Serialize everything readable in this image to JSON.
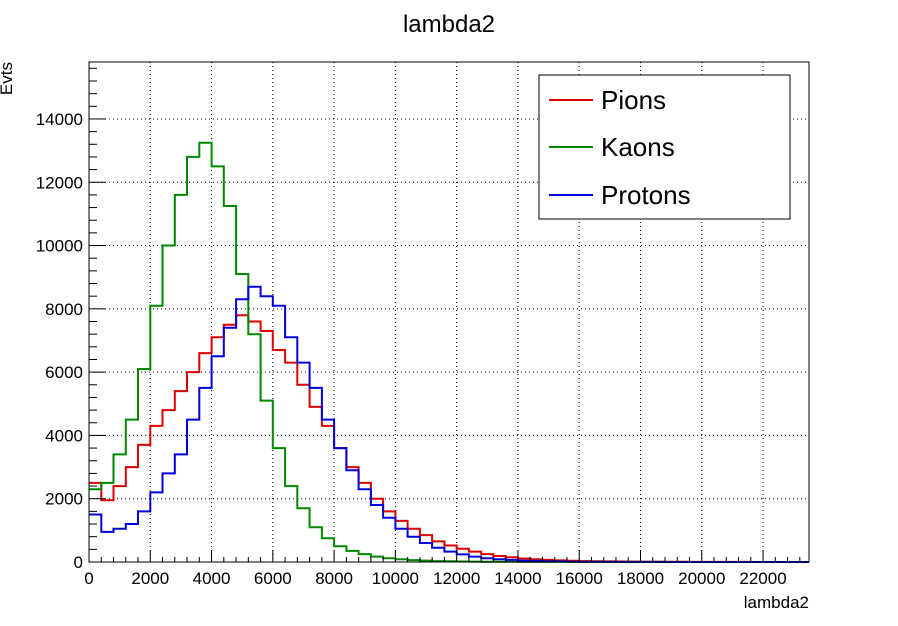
{
  "chart_data": {
    "type": "line",
    "title": "lambda2",
    "xlabel": "lambda2",
    "ylabel": "Evts",
    "xlim": [
      0,
      23500
    ],
    "ylim": [
      0,
      15800
    ],
    "bin_width": 400,
    "grid": true,
    "legend_position": "top-right",
    "x_ticks": [
      0,
      2000,
      4000,
      6000,
      8000,
      10000,
      12000,
      14000,
      16000,
      18000,
      20000,
      22000
    ],
    "y_ticks": [
      0,
      2000,
      4000,
      6000,
      8000,
      10000,
      12000,
      14000
    ],
    "series": [
      {
        "name": "Pions",
        "color": "#dd0000",
        "values": [
          2500,
          1950,
          2400,
          3000,
          3700,
          4300,
          4800,
          5400,
          6000,
          6600,
          7100,
          7500,
          7800,
          7600,
          7300,
          6700,
          6300,
          5600,
          4900,
          4300,
          3600,
          3000,
          2500,
          2000,
          1600,
          1300,
          1050,
          850,
          650,
          520,
          420,
          330,
          250,
          190,
          150,
          110,
          85,
          65,
          50,
          40,
          30,
          25,
          20,
          16,
          12,
          10,
          8,
          6,
          5,
          4,
          3,
          3,
          2,
          2,
          1,
          1,
          1,
          1,
          1
        ]
      },
      {
        "name": "Kaons",
        "color": "#008800",
        "values": [
          2300,
          2500,
          3400,
          4500,
          6100,
          8100,
          10000,
          11600,
          12800,
          13250,
          12500,
          11250,
          9100,
          7200,
          5100,
          3600,
          2400,
          1700,
          1100,
          750,
          500,
          350,
          250,
          170,
          120,
          85,
          60,
          45,
          30,
          22,
          16,
          12,
          9,
          7,
          5,
          4,
          3,
          2,
          2,
          1,
          1,
          1,
          1,
          1,
          1,
          1,
          0,
          0,
          0,
          0,
          0,
          0,
          0,
          0,
          0,
          0,
          0,
          0,
          0
        ]
      },
      {
        "name": "Protons",
        "color": "#0000dd",
        "values": [
          1500,
          950,
          1050,
          1200,
          1600,
          2200,
          2800,
          3400,
          4500,
          5500,
          6500,
          7400,
          8300,
          8700,
          8400,
          8100,
          7100,
          6300,
          5500,
          4500,
          3600,
          2900,
          2300,
          1800,
          1400,
          1050,
          800,
          600,
          450,
          330,
          240,
          170,
          120,
          90,
          65,
          45,
          35,
          25,
          18,
          12,
          9,
          7,
          5,
          4,
          3,
          2,
          2,
          1,
          1,
          1,
          1,
          1,
          1,
          1,
          1,
          1,
          1,
          1,
          1
        ]
      }
    ]
  }
}
